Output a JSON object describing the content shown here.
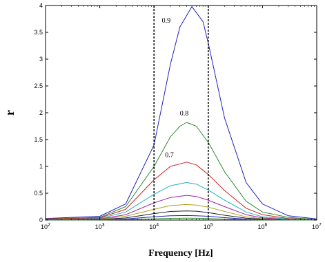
{
  "chart_data": {
    "type": "line",
    "title": "",
    "xlabel": "Frequency [Hz]",
    "ylabel": "r",
    "xscale": "log",
    "xlim": [
      100,
      10000000
    ],
    "ylim": [
      0,
      4
    ],
    "grid": false,
    "legend": "none",
    "x_ticks": [
      {
        "value": 100,
        "base": "10",
        "exp": "2"
      },
      {
        "value": 1000,
        "base": "10",
        "exp": "3"
      },
      {
        "value": 10000,
        "base": "10",
        "exp": "4"
      },
      {
        "value": 100000,
        "base": "10",
        "exp": "5"
      },
      {
        "value": 1000000,
        "base": "10",
        "exp": "6"
      },
      {
        "value": 10000000,
        "base": "10",
        "exp": "7"
      }
    ],
    "y_ticks": [
      {
        "value": 0,
        "label": "0"
      },
      {
        "value": 0.5,
        "label": "0.5"
      },
      {
        "value": 1,
        "label": "1"
      },
      {
        "value": 1.5,
        "label": "1.5"
      },
      {
        "value": 2,
        "label": "2"
      },
      {
        "value": 2.5,
        "label": "2.5"
      },
      {
        "value": 3,
        "label": "3"
      },
      {
        "value": 3.5,
        "label": "3.5"
      },
      {
        "value": 4,
        "label": "4"
      }
    ],
    "vlines": [
      10000,
      100000
    ],
    "series": [
      {
        "color": "#1f1fbf",
        "values": [
          [
            100,
            0.03
          ],
          [
            1000,
            0.07
          ],
          [
            3000,
            0.3
          ],
          [
            10000,
            1.4
          ],
          [
            20000,
            2.9
          ],
          [
            30000,
            3.6
          ],
          [
            50000,
            3.98
          ],
          [
            80000,
            3.7
          ],
          [
            100000,
            3.3
          ],
          [
            200000,
            1.9
          ],
          [
            500000,
            0.7
          ],
          [
            1000000,
            0.3
          ],
          [
            3000000,
            0.08
          ],
          [
            10000000,
            0.02
          ]
        ]
      },
      {
        "color": "#2e8b2e",
        "values": [
          [
            100,
            0.02
          ],
          [
            1000,
            0.05
          ],
          [
            3000,
            0.25
          ],
          [
            10000,
            1.0
          ],
          [
            20000,
            1.55
          ],
          [
            30000,
            1.75
          ],
          [
            40000,
            1.82
          ],
          [
            60000,
            1.75
          ],
          [
            100000,
            1.45
          ],
          [
            200000,
            0.9
          ],
          [
            500000,
            0.35
          ],
          [
            1000000,
            0.15
          ],
          [
            3000000,
            0.05
          ],
          [
            10000000,
            0.01
          ]
        ]
      },
      {
        "color": "#d02020",
        "values": [
          [
            100,
            0.02
          ],
          [
            1000,
            0.04
          ],
          [
            3000,
            0.2
          ],
          [
            10000,
            0.75
          ],
          [
            20000,
            1.0
          ],
          [
            40000,
            1.08
          ],
          [
            60000,
            1.03
          ],
          [
            100000,
            0.85
          ],
          [
            200000,
            0.55
          ],
          [
            500000,
            0.22
          ],
          [
            1000000,
            0.1
          ],
          [
            3000000,
            0.03
          ],
          [
            10000000,
            0.01
          ]
        ]
      },
      {
        "color": "#20b0c0",
        "values": [
          [
            100,
            0.01
          ],
          [
            1000,
            0.03
          ],
          [
            3000,
            0.15
          ],
          [
            10000,
            0.48
          ],
          [
            20000,
            0.64
          ],
          [
            40000,
            0.7
          ],
          [
            60000,
            0.67
          ],
          [
            100000,
            0.56
          ],
          [
            200000,
            0.37
          ],
          [
            500000,
            0.15
          ],
          [
            1000000,
            0.06
          ],
          [
            3000000,
            0.02
          ],
          [
            10000000,
            0.005
          ]
        ]
      },
      {
        "color": "#a020a0",
        "values": [
          [
            100,
            0.01
          ],
          [
            1000,
            0.02
          ],
          [
            3000,
            0.1
          ],
          [
            10000,
            0.32
          ],
          [
            20000,
            0.42
          ],
          [
            40000,
            0.46
          ],
          [
            60000,
            0.44
          ],
          [
            100000,
            0.37
          ],
          [
            200000,
            0.25
          ],
          [
            500000,
            0.1
          ],
          [
            1000000,
            0.04
          ],
          [
            3000000,
            0.01
          ],
          [
            10000000,
            0.003
          ]
        ]
      },
      {
        "color": "#b0a020",
        "values": [
          [
            100,
            0.01
          ],
          [
            1000,
            0.015
          ],
          [
            3000,
            0.07
          ],
          [
            10000,
            0.2
          ],
          [
            20000,
            0.27
          ],
          [
            40000,
            0.29
          ],
          [
            60000,
            0.28
          ],
          [
            100000,
            0.24
          ],
          [
            200000,
            0.16
          ],
          [
            500000,
            0.06
          ],
          [
            1000000,
            0.025
          ],
          [
            3000000,
            0.008
          ],
          [
            10000000,
            0.002
          ]
        ]
      },
      {
        "color": "#202020",
        "values": [
          [
            100,
            0.005
          ],
          [
            1000,
            0.01
          ],
          [
            3000,
            0.04
          ],
          [
            10000,
            0.12
          ],
          [
            20000,
            0.16
          ],
          [
            40000,
            0.17
          ],
          [
            60000,
            0.165
          ],
          [
            100000,
            0.14
          ],
          [
            200000,
            0.09
          ],
          [
            500000,
            0.035
          ],
          [
            1000000,
            0.015
          ],
          [
            3000000,
            0.005
          ],
          [
            10000000,
            0.001
          ]
        ]
      },
      {
        "color": "#1f1fbf",
        "values": [
          [
            100,
            0.003
          ],
          [
            1000,
            0.006
          ],
          [
            3000,
            0.02
          ],
          [
            10000,
            0.06
          ],
          [
            20000,
            0.08
          ],
          [
            40000,
            0.085
          ],
          [
            60000,
            0.08
          ],
          [
            100000,
            0.07
          ],
          [
            200000,
            0.045
          ],
          [
            500000,
            0.018
          ],
          [
            1000000,
            0.007
          ],
          [
            3000000,
            0.002
          ],
          [
            10000000,
            0.0005
          ]
        ]
      },
      {
        "color": "#2e8b2e",
        "values": [
          [
            100,
            0.001
          ],
          [
            1000,
            0.003
          ],
          [
            3000,
            0.008
          ],
          [
            10000,
            0.025
          ],
          [
            20000,
            0.032
          ],
          [
            40000,
            0.035
          ],
          [
            60000,
            0.033
          ],
          [
            100000,
            0.028
          ],
          [
            200000,
            0.018
          ],
          [
            500000,
            0.007
          ],
          [
            1000000,
            0.003
          ],
          [
            3000000,
            0.001
          ],
          [
            10000000,
            0.0002
          ]
        ]
      }
    ],
    "annotations": [
      {
        "text": "0.9",
        "x": 14000,
        "y": 3.68
      },
      {
        "text": "0.8",
        "x": 30000,
        "y": 1.95
      },
      {
        "text": "0.7",
        "x": 16000,
        "y": 1.17
      }
    ]
  }
}
